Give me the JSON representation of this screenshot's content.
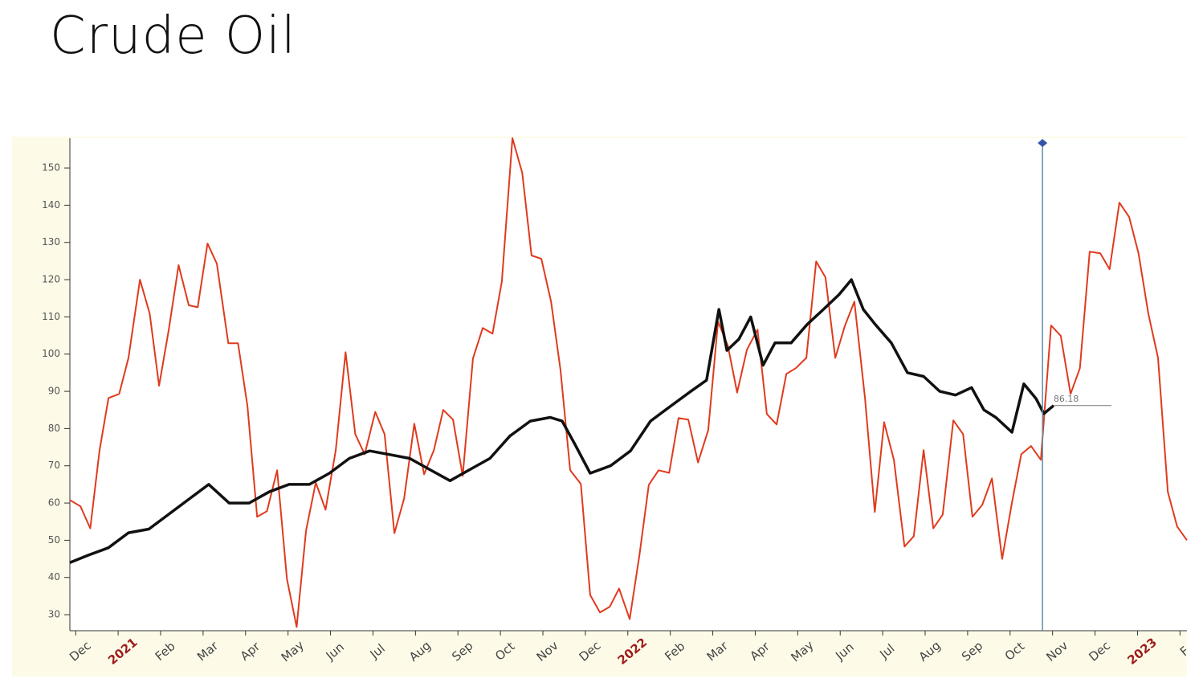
{
  "chart_data": {
    "type": "line",
    "title": "Crude Oil",
    "xlim": [
      -0.25,
      26.05
    ],
    "ylim": [
      25.7,
      158
    ],
    "yticks": [
      30,
      40,
      50,
      60,
      70,
      80,
      90,
      100,
      110,
      120,
      130,
      140,
      150
    ],
    "xticks": [
      {
        "value": 0,
        "label": "Dec"
      },
      {
        "value": 1,
        "label": "2021"
      },
      {
        "value": 2,
        "label": "Feb"
      },
      {
        "value": 3,
        "label": "Mar"
      },
      {
        "value": 4,
        "label": "Apr"
      },
      {
        "value": 5,
        "label": "May"
      },
      {
        "value": 6,
        "label": "Jun"
      },
      {
        "value": 7,
        "label": "Jul"
      },
      {
        "value": 8,
        "label": "Aug"
      },
      {
        "value": 9,
        "label": "Sep"
      },
      {
        "value": 10,
        "label": "Oct"
      },
      {
        "value": 11,
        "label": "Nov"
      },
      {
        "value": 12,
        "label": "Dec"
      },
      {
        "value": 13,
        "label": "2022"
      },
      {
        "value": 14,
        "label": "Feb"
      },
      {
        "value": 15,
        "label": "Mar"
      },
      {
        "value": 16,
        "label": "Apr"
      },
      {
        "value": 17,
        "label": "May"
      },
      {
        "value": 18,
        "label": "Jun"
      },
      {
        "value": 19,
        "label": "Jul"
      },
      {
        "value": 20,
        "label": "Aug"
      },
      {
        "value": 21,
        "label": "Sep"
      },
      {
        "value": 22,
        "label": "Oct"
      },
      {
        "value": 23,
        "label": "Nov"
      },
      {
        "value": 24,
        "label": "Dec"
      },
      {
        "value": 25,
        "label": "2023"
      },
      {
        "value": 26,
        "label": "F"
      }
    ],
    "year_label_color": "#9b1c1c",
    "cursor_x": 22.65,
    "cursor_color": "#5b8fa8",
    "series": [
      {
        "color": "#e03a1e",
        "width": 2,
        "x": [
          -0.25,
          0,
          0.23,
          0.45,
          0.66,
          0.91,
          1.13,
          1.4,
          1.63,
          1.85,
          2.08,
          2.31,
          2.55,
          2.76,
          2.99,
          3.21,
          3.48,
          3.71,
          3.93,
          4.16,
          4.39,
          4.63,
          4.86,
          5.09,
          5.31,
          5.54,
          5.77,
          6.01,
          6.24,
          6.47,
          6.69,
          6.94,
          7.16,
          7.39,
          7.62,
          7.86,
          8.09,
          8.32,
          8.54,
          8.77,
          9.0,
          9.24,
          9.47,
          9.7,
          9.92,
          10.17,
          10.4,
          10.62,
          10.85,
          11.08,
          11.3,
          11.53,
          11.78,
          12.0,
          12.23,
          12.46,
          12.68,
          12.93,
          13.16,
          13.38,
          13.61,
          13.86,
          14.08,
          14.31,
          14.54,
          14.78,
          15.01,
          15.24,
          15.46,
          15.69,
          15.94,
          16.16,
          16.39,
          16.62,
          16.84,
          17.09,
          17.32,
          17.54,
          17.77,
          18.0,
          18.22,
          18.47,
          18.7,
          18.92,
          19.15,
          19.4,
          19.62,
          19.85,
          20.08,
          20.3,
          20.55,
          20.78,
          21.0,
          21.23,
          21.46,
          21.7,
          21.93,
          22.15,
          22.38,
          22.61,
          22.85,
          23.08,
          23.31,
          23.53,
          23.76,
          24.01,
          24.23,
          24.46,
          24.69,
          24.91,
          25.14,
          25.37,
          25.6,
          25.82,
          26.05
        ],
        "values": [
          60.8,
          59.1,
          53.2,
          74.2,
          88.2,
          89.3,
          99.0,
          120.0,
          110.9,
          91.5,
          106.6,
          123.9,
          113.1,
          112.6,
          129.7,
          124.3,
          102.9,
          102.9,
          86.1,
          56.3,
          57.8,
          68.8,
          39.6,
          26.7,
          52.6,
          65.5,
          58.2,
          74.2,
          100.5,
          78.5,
          73.1,
          84.5,
          78.5,
          51.9,
          61.2,
          81.3,
          67.7,
          74.2,
          85.0,
          82.4,
          67.3,
          98.8,
          107.0,
          105.5,
          119.5,
          158.0,
          148.7,
          126.5,
          125.6,
          114.1,
          95.8,
          68.8,
          65.1,
          35.3,
          30.6,
          32.1,
          37.0,
          28.8,
          46.1,
          64.9,
          68.8,
          68.1,
          82.8,
          82.4,
          70.9,
          79.6,
          108.7,
          102.3,
          89.7,
          101.2,
          106.6,
          83.9,
          81.1,
          94.7,
          96.2,
          99.0,
          124.9,
          120.6,
          99.0,
          107.7,
          114.1,
          88.2,
          57.6,
          81.7,
          71.6,
          48.3,
          51.1,
          74.2,
          53.2,
          56.9,
          82.2,
          78.5,
          56.3,
          59.5,
          66.6,
          45.0,
          60.1,
          73.1,
          75.3,
          71.6,
          107.7,
          104.9,
          89.3,
          96.2,
          127.5,
          127.1,
          122.8,
          140.7,
          136.8,
          127.1,
          110.9,
          99.0,
          63.0,
          53.7,
          50.0
        ]
      },
      {
        "color": "#111111",
        "width": 3.5,
        "x": [
          -0.25,
          0.19,
          0.66,
          1.13,
          1.61,
          2.08,
          2.55,
          3.02,
          3.5,
          3.97,
          4.44,
          4.91,
          5.39,
          5.86,
          6.33,
          6.81,
          7.28,
          7.75,
          8.22,
          8.7,
          9.17,
          9.64,
          10.11,
          10.59,
          11.06,
          11.34,
          11.63,
          12.0,
          12.48,
          12.95,
          13.42,
          13.89,
          14.37,
          14.74,
          15.03,
          15.22,
          15.5,
          15.78,
          16.07,
          16.35,
          16.73,
          17.11,
          17.49,
          17.86,
          18.15,
          18.43,
          18.71,
          19.09,
          19.47,
          19.85,
          20.23,
          20.6,
          20.98,
          21.27,
          21.55,
          21.93,
          22.21,
          22.5,
          22.68,
          22.91
        ],
        "values": [
          44,
          46,
          48,
          52,
          53,
          57,
          61,
          65,
          60,
          60,
          63,
          65,
          65,
          68,
          72,
          74,
          73,
          72,
          69,
          66,
          69,
          72,
          78,
          82,
          83,
          82,
          76,
          68,
          70,
          74,
          82,
          86,
          90,
          93,
          112,
          101,
          104,
          110,
          97,
          103,
          103,
          108,
          112,
          116,
          120,
          112,
          108,
          103,
          95,
          94,
          90,
          89,
          91,
          85,
          83,
          79,
          92,
          88,
          84,
          86.18
        ],
        "last_label": "86.18"
      }
    ]
  }
}
